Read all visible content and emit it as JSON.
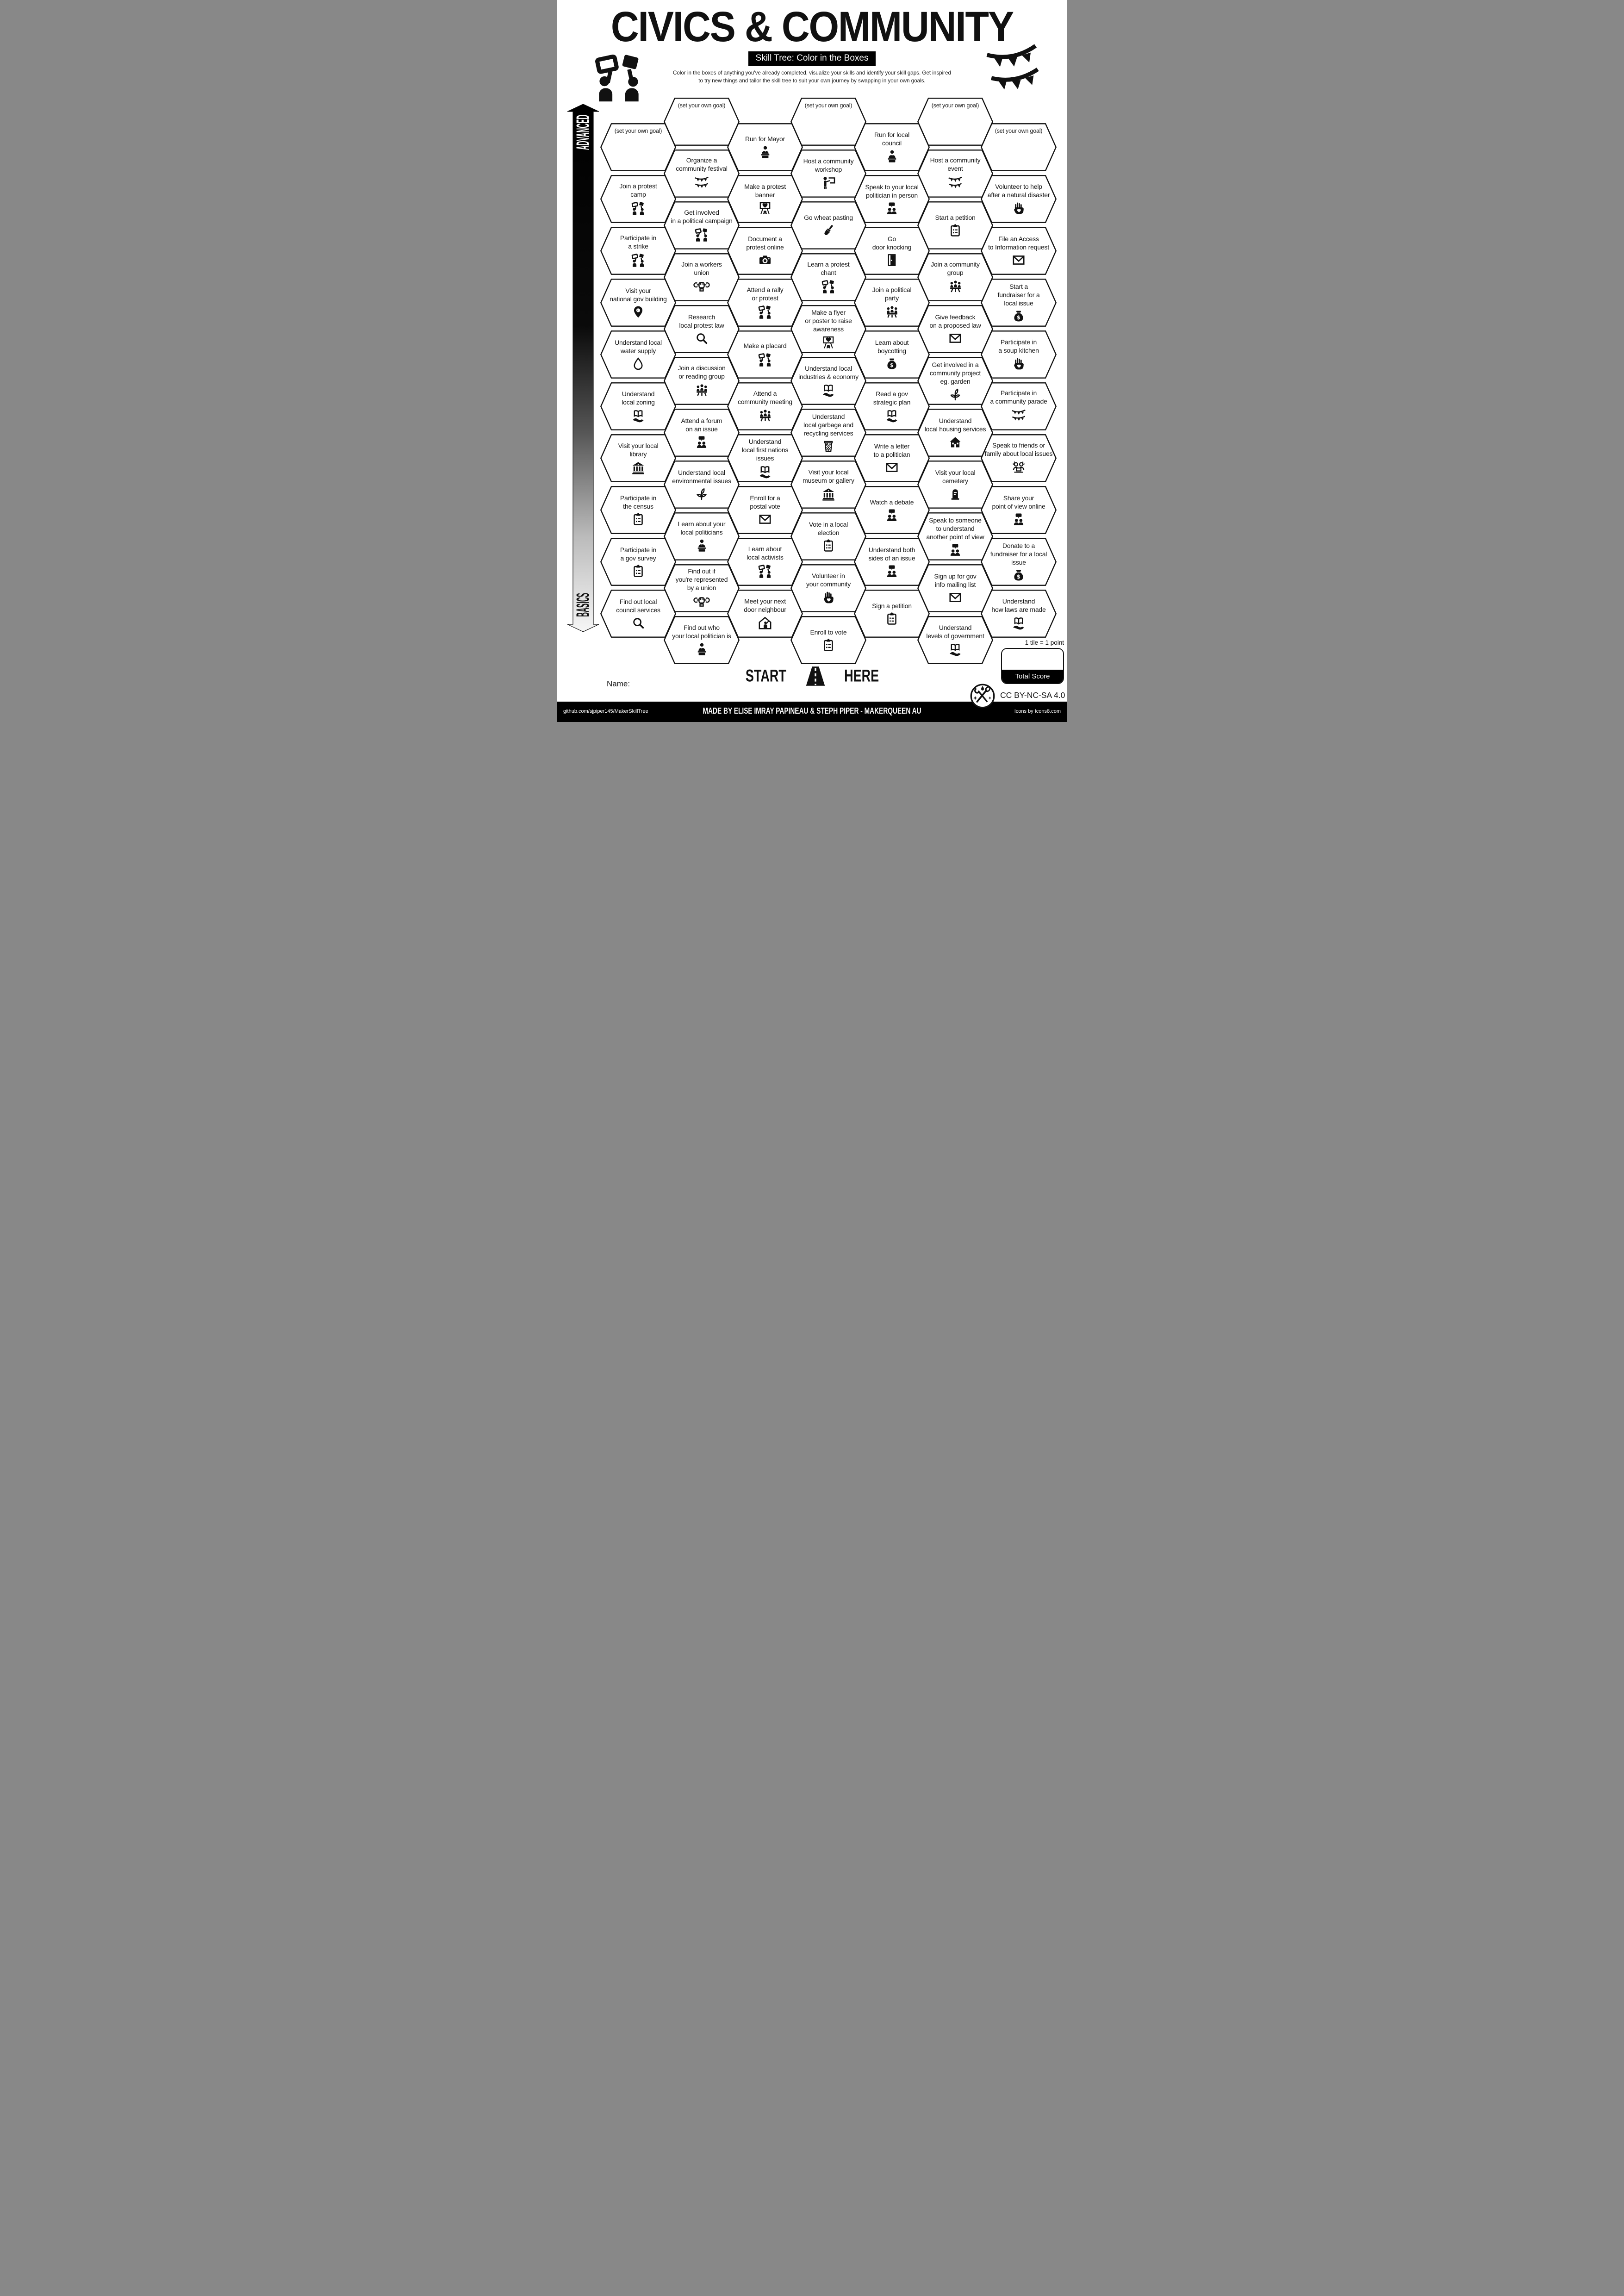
{
  "header": {
    "title": "CIVICS & COMMUNITY",
    "subtitle": "Skill Tree: Color in the Boxes",
    "description_line1": "Color in the boxes of anything you've already completed, visualize your skills and identify your skill gaps.  Get inspired",
    "description_line2": "to try new things and tailor the skill tree to suit your own journey by swapping in your own goals."
  },
  "axis": {
    "advanced": "ADVANCED",
    "basics": "BASICS"
  },
  "goal_label": "(set your own goal)",
  "colors": {
    "ink": "#111111",
    "paper": "#ffffff"
  },
  "columns": [
    {
      "tiles": [
        {
          "goal": true
        },
        {
          "lines": [
            "Join a protest",
            "camp"
          ],
          "icon": "protesters"
        },
        {
          "lines": [
            "Participate in",
            "a strike"
          ],
          "icon": "protesters"
        },
        {
          "lines": [
            "Visit your",
            "national gov building"
          ],
          "icon": "pin"
        },
        {
          "lines": [
            "Understand local",
            "water supply"
          ],
          "icon": "droplet"
        },
        {
          "lines": [
            "Understand",
            "local zoning"
          ],
          "icon": "book-hand"
        },
        {
          "lines": [
            "Visit your local",
            "library"
          ],
          "icon": "bank"
        },
        {
          "lines": [
            "Participate in",
            "the census"
          ],
          "icon": "clipboard"
        },
        {
          "lines": [
            "Participate in",
            "a gov survey"
          ],
          "icon": "clipboard"
        },
        {
          "lines": [
            "Find out local",
            "council services"
          ],
          "icon": "magnifier"
        }
      ]
    },
    {
      "tiles": [
        {
          "goal": true
        },
        {
          "lines": [
            "Organize a",
            "community festival"
          ],
          "icon": "bunting"
        },
        {
          "lines": [
            "Get involved",
            "in a political campaign"
          ],
          "icon": "protesters"
        },
        {
          "lines": [
            "Join a workers",
            "union"
          ],
          "icon": "fist-wrench"
        },
        {
          "lines": [
            "Research",
            "local protest law"
          ],
          "icon": "magnifier"
        },
        {
          "lines": [
            "Join a discussion",
            "or reading group"
          ],
          "icon": "people3"
        },
        {
          "lines": [
            "Attend a forum",
            "on an issue"
          ],
          "icon": "people2-speech"
        },
        {
          "lines": [
            "Understand local",
            "environmental issues"
          ],
          "icon": "plant"
        },
        {
          "lines": [
            "Learn about your",
            "local politicians"
          ],
          "icon": "person"
        },
        {
          "lines": [
            "Find out if",
            "you're represented",
            "by a union"
          ],
          "icon": "fist-wrench"
        },
        {
          "lines": [
            "Find out who",
            "your local politician is"
          ],
          "icon": "person"
        }
      ]
    },
    {
      "tiles": [
        {
          "lines": [
            "Run for Mayor"
          ],
          "icon": "person"
        },
        {
          "lines": [
            "Make a protest",
            "banner"
          ],
          "icon": "banner"
        },
        {
          "lines": [
            "Document a",
            "protest online"
          ],
          "icon": "camera"
        },
        {
          "lines": [
            "Attend a rally",
            "or protest"
          ],
          "icon": "protesters"
        },
        {
          "lines": [
            "Make a placard"
          ],
          "icon": "protesters"
        },
        {
          "lines": [
            "Attend a",
            "community meeting"
          ],
          "icon": "people3"
        },
        {
          "lines": [
            "Understand",
            "local first nations",
            "issues"
          ],
          "icon": "book-hand"
        },
        {
          "lines": [
            "Enroll for a",
            "postal vote"
          ],
          "icon": "envelope"
        },
        {
          "lines": [
            "Learn about",
            "local activists"
          ],
          "icon": "protesters"
        },
        {
          "lines": [
            "Meet your next",
            "door neighbour"
          ],
          "icon": "house-person"
        }
      ]
    },
    {
      "tiles": [
        {
          "goal": true
        },
        {
          "lines": [
            "Host a community",
            "workshop"
          ],
          "icon": "presenter"
        },
        {
          "lines": [
            "Go wheat pasting"
          ],
          "icon": "brush"
        },
        {
          "lines": [
            "Learn a protest",
            "chant"
          ],
          "icon": "protesters"
        },
        {
          "lines": [
            "Make a flyer",
            "or poster to raise",
            "awareness"
          ],
          "icon": "banner"
        },
        {
          "lines": [
            "Understand local",
            "industries & economy"
          ],
          "icon": "book-hand"
        },
        {
          "lines": [
            "Understand",
            "local garbage and",
            "recycling services"
          ],
          "icon": "bin"
        },
        {
          "lines": [
            "Visit your local",
            "museum or gallery"
          ],
          "icon": "bank"
        },
        {
          "lines": [
            "Vote in a local",
            "election"
          ],
          "icon": "clipboard"
        },
        {
          "lines": [
            "Volunteer in",
            "your community"
          ],
          "icon": "hand-heart"
        },
        {
          "lines": [
            "Enroll to vote"
          ],
          "icon": "clipboard"
        }
      ]
    },
    {
      "tiles": [
        {
          "lines": [
            "Run for local",
            "council"
          ],
          "icon": "person"
        },
        {
          "lines": [
            "Speak to your local",
            "politician in person"
          ],
          "icon": "people2-speech"
        },
        {
          "lines": [
            "Go",
            "door knocking"
          ],
          "icon": "door"
        },
        {
          "lines": [
            "Join a political",
            "party"
          ],
          "icon": "people3"
        },
        {
          "lines": [
            "Learn about",
            "boycotting"
          ],
          "icon": "moneybag"
        },
        {
          "lines": [
            "Read a gov",
            "strategic plan"
          ],
          "icon": "book-hand"
        },
        {
          "lines": [
            "Write a letter",
            "to a politician"
          ],
          "icon": "envelope"
        },
        {
          "lines": [
            "Watch a debate"
          ],
          "icon": "people2-speech"
        },
        {
          "lines": [
            "Understand both",
            "sides of an issue"
          ],
          "icon": "people2-speech"
        },
        {
          "lines": [
            "Sign a petition"
          ],
          "icon": "clipboard"
        }
      ]
    },
    {
      "tiles": [
        {
          "goal": true
        },
        {
          "lines": [
            "Host a community",
            "event"
          ],
          "icon": "bunting"
        },
        {
          "lines": [
            "Start a petition"
          ],
          "icon": "clipboard"
        },
        {
          "lines": [
            "Join a community",
            "group"
          ],
          "icon": "people3"
        },
        {
          "lines": [
            "Give feedback",
            "on a proposed law"
          ],
          "icon": "envelope"
        },
        {
          "lines": [
            "Get involved in a",
            "community project",
            "eg. garden"
          ],
          "icon": "plant"
        },
        {
          "lines": [
            "Understand",
            "local housing services"
          ],
          "icon": "house"
        },
        {
          "lines": [
            "Visit your local",
            "cemetery"
          ],
          "icon": "tomb"
        },
        {
          "lines": [
            "Speak to someone",
            "to understand",
            "another point of view"
          ],
          "icon": "people2-speech"
        },
        {
          "lines": [
            "Sign up for gov",
            "info mailing list"
          ],
          "icon": "envelope"
        },
        {
          "lines": [
            "Understand",
            "levels of government"
          ],
          "icon": "book-hand"
        }
      ]
    },
    {
      "tiles": [
        {
          "goal": true
        },
        {
          "lines": [
            "Volunteer to help",
            "after a natural disaster"
          ],
          "icon": "hand-heart"
        },
        {
          "lines": [
            "File an Access",
            "to Information request"
          ],
          "icon": "envelope"
        },
        {
          "lines": [
            "Start a",
            "fundraiser for a",
            "local issue"
          ],
          "icon": "moneybag"
        },
        {
          "lines": [
            "Participate in",
            "a soup kitchen"
          ],
          "icon": "hand-heart"
        },
        {
          "lines": [
            "Participate in",
            "a community parade"
          ],
          "icon": "bunting"
        },
        {
          "lines": [
            "Speak to friends or",
            "family about local issues"
          ],
          "icon": "people-laptop"
        },
        {
          "lines": [
            "Share your",
            "point of view online"
          ],
          "icon": "people2-speech"
        },
        {
          "lines": [
            "Donate to a",
            "fundraiser for a local",
            "issue"
          ],
          "icon": "moneybag"
        },
        {
          "lines": [
            "Understand",
            "how laws are made"
          ],
          "icon": "book-hand"
        }
      ]
    }
  ],
  "start": {
    "start_word": "START",
    "here_word": "HERE"
  },
  "name_label": "Name:",
  "score": {
    "tile_point": "1 tile = 1 point",
    "total_label": "Total Score"
  },
  "license": "CC BY-NC-SA 4.0",
  "footer": {
    "left": "github.com/sjpiper145/MakerSkillTree",
    "center": "MADE BY ELISE IMRAY PAPINEAU & STEPH PIPER  -  MAKERQUEEN AU",
    "right": "Icons by Icons8.com"
  }
}
